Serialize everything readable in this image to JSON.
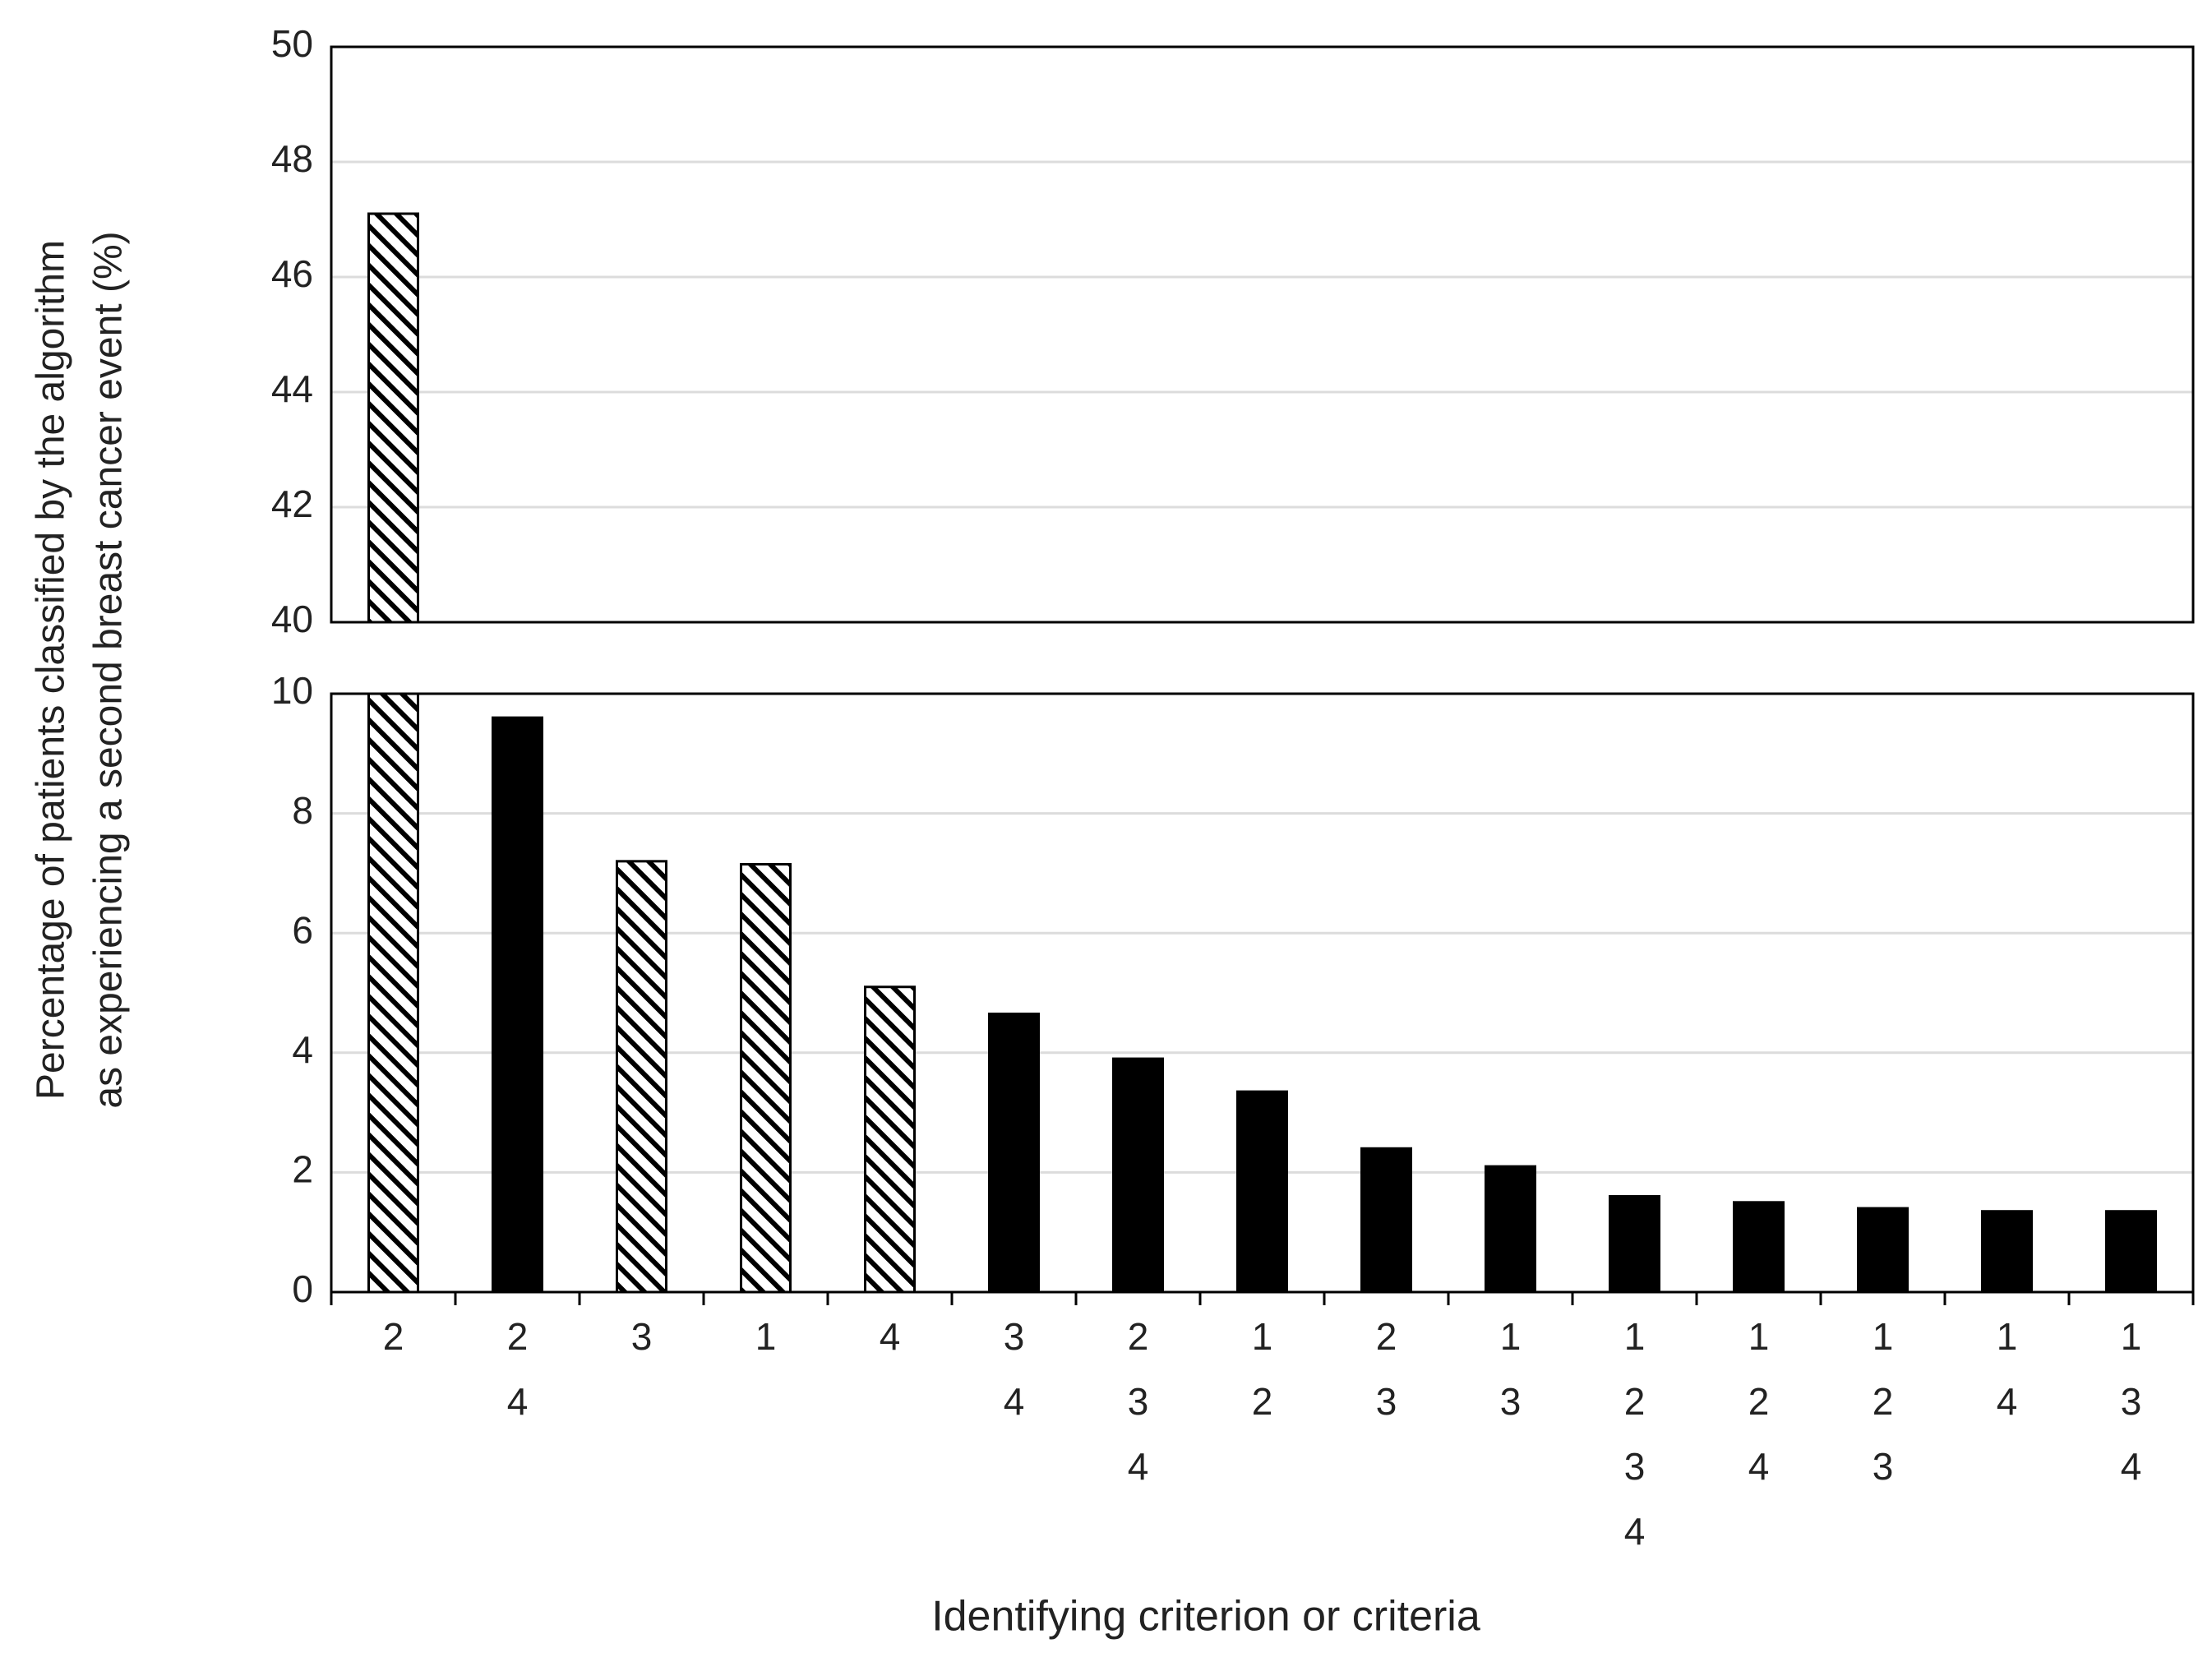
{
  "chart_data": {
    "type": "broken_bar",
    "y_label": [
      "Percentage of patients classified by the algorithm",
      "as experiencing a second breast cancer event (%)"
    ],
    "x_label": "Identifying criterion or criteria",
    "categories": [
      [
        "2"
      ],
      [
        "2",
        "4"
      ],
      [
        "3"
      ],
      [
        "1"
      ],
      [
        "4"
      ],
      [
        "3",
        "4"
      ],
      [
        "2",
        "3",
        "4"
      ],
      [
        "1",
        "2"
      ],
      [
        "2",
        "3"
      ],
      [
        "1",
        "3"
      ],
      [
        "1",
        "2",
        "3",
        "4"
      ],
      [
        "1",
        "2",
        "4"
      ],
      [
        "1",
        "2",
        "3"
      ],
      [
        "1",
        "4"
      ],
      [
        "1",
        "3",
        "4"
      ]
    ],
    "values": [
      47.1,
      9.6,
      7.2,
      7.15,
      5.1,
      4.65,
      3.9,
      3.35,
      2.4,
      2.1,
      1.6,
      1.5,
      1.4,
      1.35,
      1.35
    ],
    "bar_styles": [
      "hatch",
      "solid",
      "hatch",
      "hatch",
      "hatch",
      "solid",
      "solid",
      "solid",
      "solid",
      "solid",
      "solid",
      "solid",
      "solid",
      "solid",
      "solid"
    ],
    "color": "#000000",
    "ylim_upper": [
      40,
      50
    ],
    "yticks_upper": [
      40,
      42,
      44,
      46,
      48,
      50
    ],
    "ylim": [
      0,
      10
    ],
    "yticks": [
      0,
      2,
      4,
      6,
      8,
      10
    ],
    "grid": true
  }
}
